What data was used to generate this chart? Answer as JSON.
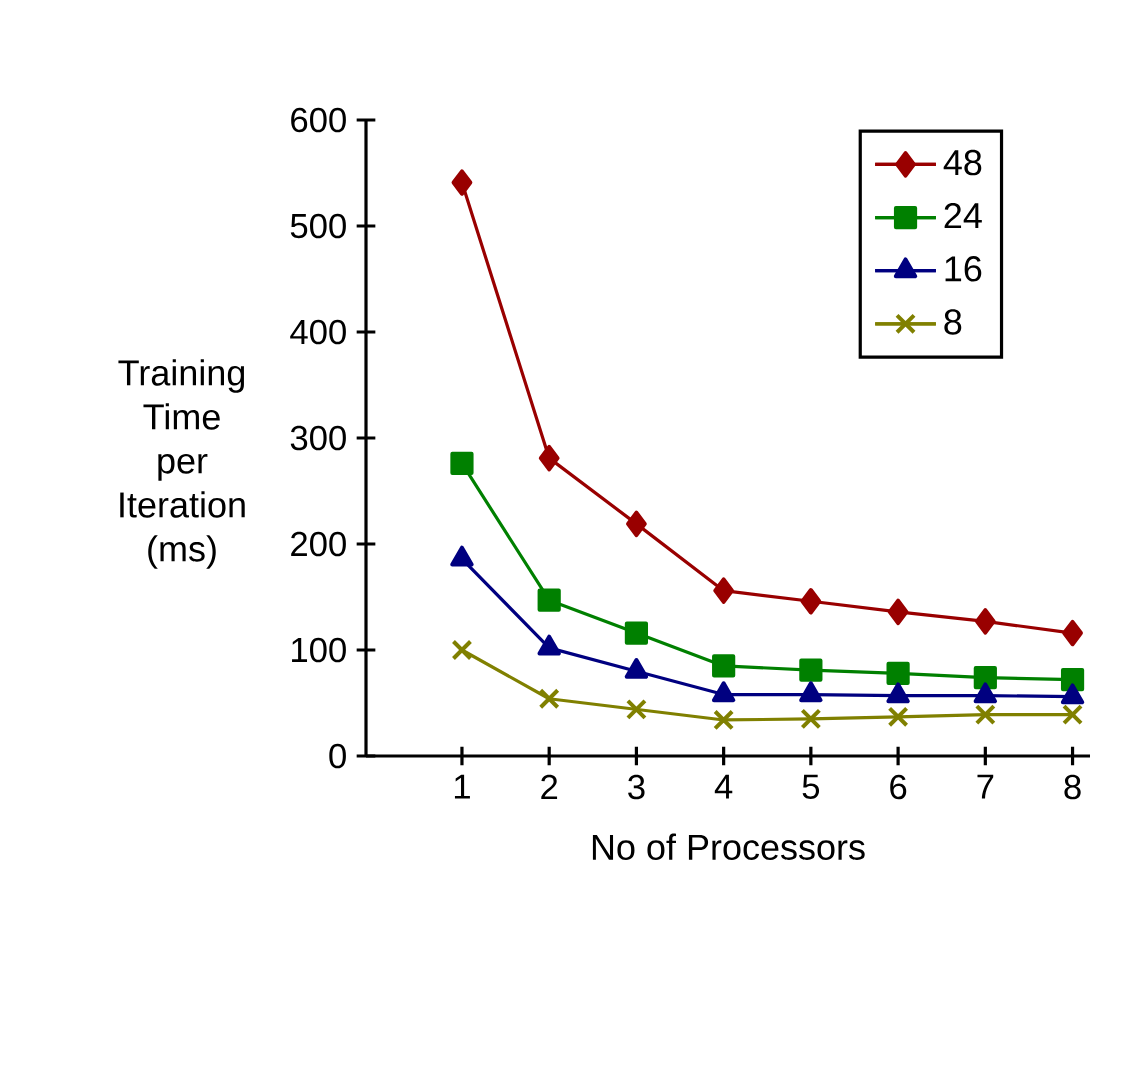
{
  "chart_data": {
    "type": "line",
    "xlabel": "No of Processors",
    "ylabel": "Training Time per Iteration (ms)",
    "categories": [
      "1",
      "2",
      "3",
      "4",
      "5",
      "6",
      "7",
      "8"
    ],
    "series": [
      {
        "name": "48",
        "color": "#990000",
        "marker": "diamond",
        "values": [
          541,
          281,
          219,
          156,
          146,
          136,
          127,
          116
        ]
      },
      {
        "name": "24",
        "color": "#008000",
        "marker": "square",
        "values": [
          276,
          147,
          116,
          85,
          81,
          78,
          74,
          72
        ]
      },
      {
        "name": "16",
        "color": "#000080",
        "marker": "triangle",
        "values": [
          186,
          102,
          80,
          58,
          58,
          57,
          57,
          56
        ]
      },
      {
        "name": "8",
        "color": "#808000",
        "marker": "cross",
        "values": [
          100,
          54,
          44,
          34,
          35,
          37,
          39,
          39
        ]
      }
    ],
    "ylim": [
      0,
      600
    ],
    "yticks": [
      0,
      100,
      200,
      300,
      400,
      500,
      600
    ],
    "grid": false,
    "legend": "top right",
    "line_style": "solid"
  }
}
